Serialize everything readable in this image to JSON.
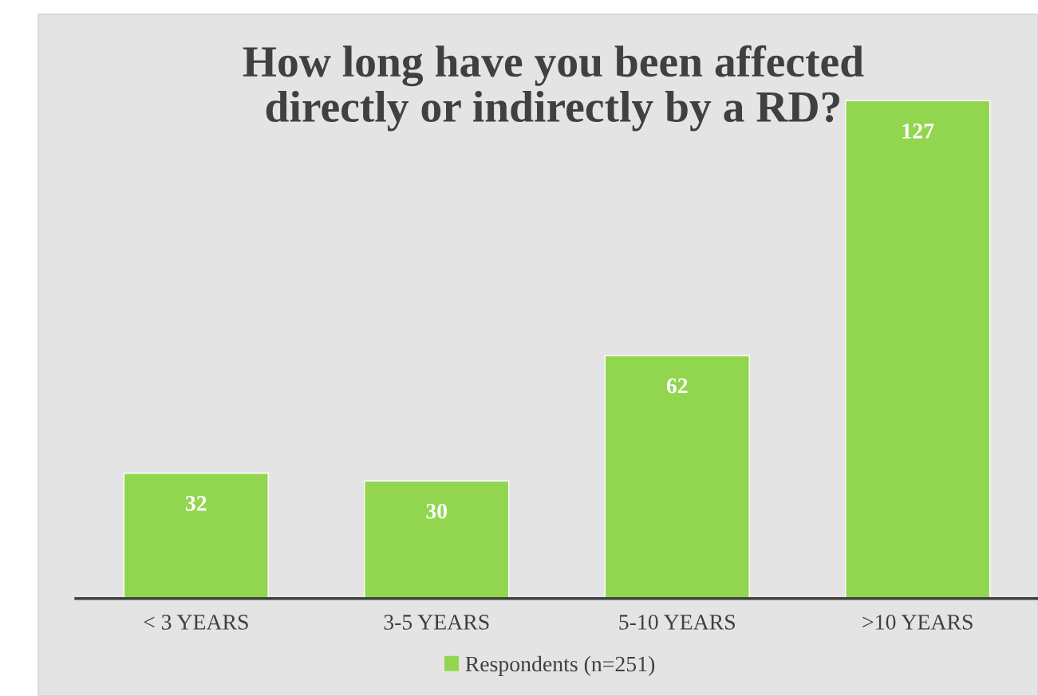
{
  "chart_data": {
    "type": "bar",
    "title": "How long have you been affected\ndirectly or indirectly by a RD?",
    "categories": [
      "< 3 YEARS",
      "3-5 YEARS",
      "5-10 YEARS",
      ">10 YEARS"
    ],
    "series": [
      {
        "name": "Respondents (n=251)",
        "color": "#92d650",
        "values": [
          32,
          30,
          62,
          127
        ]
      }
    ],
    "tick_labels": "x",
    "data_labels": true,
    "legend": "bottom",
    "grid": false
  }
}
